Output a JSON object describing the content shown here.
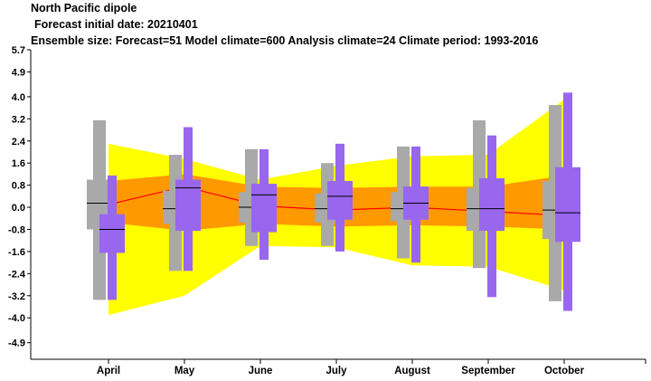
{
  "header": {
    "title": "North Pacific dipole",
    "subtitle": "Forecast initial date: 20210401",
    "info": "Ensemble size: Forecast=51 Model climate=600 Analysis climate=24   Climate period: 1993-2016"
  },
  "chart_data": {
    "type": "box",
    "title": "North Pacific dipole",
    "subtitle": "Forecast initial date: 20210401",
    "categories": [
      "April",
      "May",
      "June",
      "July",
      "August",
      "September",
      "October"
    ],
    "y_ticks": [
      "5.7",
      "4.9",
      "4.0",
      "3.2",
      "2.4",
      "1.6",
      "0.8",
      "0.0",
      "-0.8",
      "-1.6",
      "-2.4",
      "-3.2",
      "-4.0",
      "-4.9"
    ],
    "ylim": [
      -5.5,
      5.7
    ],
    "colors": {
      "forecast": "#9966ee",
      "climate": "#a9a9a9",
      "outer_band": "#ffff00",
      "inner_band": "#ff9900",
      "median_line": "#ff0000"
    },
    "climate_boxes": [
      {
        "min": -3.35,
        "q1": -0.8,
        "median": 0.15,
        "q3": 1.0,
        "max": 3.15
      },
      {
        "min": -2.3,
        "q1": -0.6,
        "median": -0.05,
        "q3": 0.6,
        "max": 1.9
      },
      {
        "min": -1.4,
        "q1": -0.55,
        "median": 0.0,
        "q3": 0.55,
        "max": 2.1
      },
      {
        "min": -1.4,
        "q1": -0.55,
        "median": -0.05,
        "q3": 0.5,
        "max": 1.6
      },
      {
        "min": -1.85,
        "q1": -0.5,
        "median": -0.05,
        "q3": 0.55,
        "max": 2.2
      },
      {
        "min": -2.2,
        "q1": -0.85,
        "median": -0.05,
        "q3": 0.7,
        "max": 3.15
      },
      {
        "min": -3.4,
        "q1": -1.15,
        "median": -0.1,
        "q3": 0.95,
        "max": 3.7
      }
    ],
    "forecast_boxes": [
      {
        "min": -3.35,
        "q1": -1.65,
        "median": -0.8,
        "q3": -0.25,
        "max": 1.15
      },
      {
        "min": -2.3,
        "q1": -0.85,
        "median": 0.7,
        "q3": 1.0,
        "max": 2.9
      },
      {
        "min": -1.9,
        "q1": -0.9,
        "median": 0.45,
        "q3": 0.85,
        "max": 2.1
      },
      {
        "min": -1.6,
        "q1": -0.45,
        "median": 0.4,
        "q3": 0.95,
        "max": 2.3
      },
      {
        "min": -2.0,
        "q1": -0.45,
        "median": 0.15,
        "q3": 0.75,
        "max": 2.2
      },
      {
        "min": -3.25,
        "q1": -0.85,
        "median": -0.05,
        "q3": 1.05,
        "max": 2.6
      },
      {
        "min": -3.75,
        "q1": -1.25,
        "median": -0.2,
        "q3": 1.45,
        "max": 4.15
      }
    ],
    "climate_band_outer": {
      "upper": [
        2.3,
        1.75,
        1.0,
        1.5,
        1.85,
        1.9,
        3.9
      ],
      "lower": [
        -3.9,
        -3.2,
        -1.4,
        -1.45,
        -2.1,
        -2.15,
        -3.0
      ]
    },
    "climate_band_inner": {
      "upper": [
        0.95,
        1.2,
        0.75,
        0.7,
        0.75,
        0.75,
        1.15
      ],
      "lower": [
        -0.55,
        -0.85,
        -0.6,
        -0.7,
        -0.65,
        -0.7,
        -0.8
      ]
    },
    "median_line": [
      0.1,
      0.75,
      0.05,
      -0.1,
      0.0,
      -0.15,
      -0.3
    ]
  }
}
